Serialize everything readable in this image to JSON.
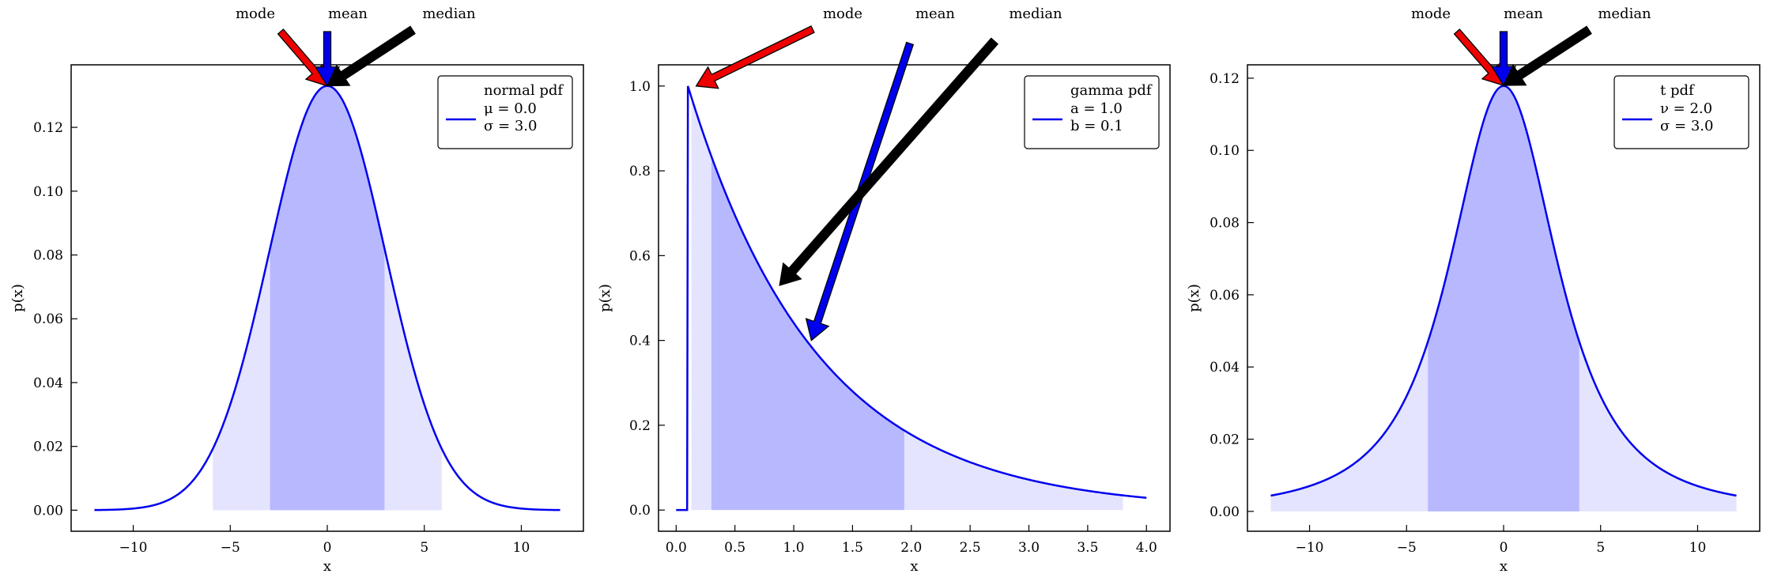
{
  "colors": {
    "curve": "#0000ee",
    "fill_outer": "#e4e4ff",
    "fill_inner": "#b8b8ff",
    "arrow_mode": "#ee0000",
    "arrow_mean": "#0000ee",
    "arrow_median": "#000000"
  },
  "chart_data": [
    {
      "type": "area",
      "distribution": "normal",
      "xlabel": "x",
      "ylabel": "p(x)",
      "xlim": [
        -13.2,
        13.2
      ],
      "ylim": [
        -0.0066,
        0.1396
      ],
      "xticks": [
        -10,
        -5,
        0,
        5,
        10
      ],
      "xtick_labels": [
        "−10",
        "−5",
        "0",
        "5",
        "10"
      ],
      "yticks": [
        0.0,
        0.02,
        0.04,
        0.06,
        0.08,
        0.1,
        0.12
      ],
      "ytick_labels": [
        "0.00",
        "0.02",
        "0.04",
        "0.06",
        "0.08",
        "0.10",
        "0.12"
      ],
      "params": {
        "mu": 0.0,
        "sigma": 3.0
      },
      "x_range": [
        -12,
        12
      ],
      "outer_band": [
        -5.9,
        5.9
      ],
      "inner_band": [
        -2.95,
        2.95
      ],
      "legend": {
        "title": "normal pdf",
        "lines": [
          "μ = 0.0",
          "σ = 3.0"
        ],
        "position": "upper right"
      },
      "annotations": {
        "labels": [
          "mode",
          "mean",
          "median"
        ],
        "points": {
          "mode": [
            0.0,
            0.133
          ],
          "mean": [
            0.0,
            0.133
          ],
          "median": [
            0.0,
            0.133
          ]
        }
      }
    },
    {
      "type": "area",
      "distribution": "gamma",
      "xlabel": "x",
      "ylabel": "p(x)",
      "xlim": [
        -0.15,
        4.2
      ],
      "ylim": [
        -0.05,
        1.05
      ],
      "xticks": [
        0.0,
        0.5,
        1.0,
        1.5,
        2.0,
        2.5,
        3.0,
        3.5,
        4.0
      ],
      "xtick_labels": [
        "0.0",
        "0.5",
        "1.0",
        "1.5",
        "2.0",
        "2.5",
        "3.0",
        "3.5",
        "4.0"
      ],
      "yticks": [
        0.0,
        0.2,
        0.4,
        0.6,
        0.8,
        1.0
      ],
      "ytick_labels": [
        "0.0",
        "0.2",
        "0.4",
        "0.6",
        "0.8",
        "1.0"
      ],
      "params": {
        "a": 1.0,
        "b": 0.1
      },
      "x_range": [
        0.0,
        4.0
      ],
      "outer_band": [
        0.13,
        3.8
      ],
      "inner_band": [
        0.3,
        1.94
      ],
      "legend": {
        "title": "gamma pdf",
        "lines": [
          "a = 1.0",
          "b = 0.1"
        ],
        "position": "upper right"
      },
      "annotations": {
        "labels": [
          "mode",
          "mean",
          "median"
        ],
        "points": {
          "mode": [
            0.17,
            1.0
          ],
          "mean": [
            1.15,
            0.4
          ],
          "median": [
            0.88,
            0.53
          ]
        }
      }
    },
    {
      "type": "area",
      "distribution": "t",
      "xlabel": "x",
      "ylabel": "p(x)",
      "xlim": [
        -13.2,
        13.2
      ],
      "ylim": [
        -0.0055,
        0.1237
      ],
      "xticks": [
        -10,
        -5,
        0,
        5,
        10
      ],
      "xtick_labels": [
        "−10",
        "−5",
        "0",
        "5",
        "10"
      ],
      "yticks": [
        0.0,
        0.02,
        0.04,
        0.06,
        0.08,
        0.1,
        0.12
      ],
      "ytick_labels": [
        "0.00",
        "0.02",
        "0.04",
        "0.06",
        "0.08",
        "0.10",
        "0.12"
      ],
      "params": {
        "nu": 2.0,
        "sigma": 3.0
      },
      "x_range": [
        -12,
        12
      ],
      "outer_band": [
        -12,
        12
      ],
      "inner_band": [
        -3.9,
        3.9
      ],
      "legend": {
        "title": "t pdf",
        "lines": [
          "ν = 2.0",
          "σ = 3.0"
        ],
        "position": "upper right"
      },
      "annotations": {
        "labels": [
          "mode",
          "mean",
          "median"
        ],
        "points": {
          "mode": [
            0.0,
            0.118
          ],
          "mean": [
            0.0,
            0.118
          ],
          "median": [
            0.0,
            0.118
          ]
        }
      }
    }
  ]
}
